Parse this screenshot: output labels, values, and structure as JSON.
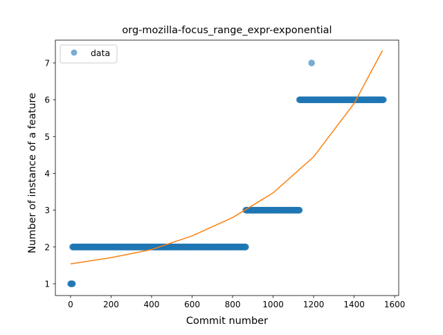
{
  "chart_data": {
    "type": "scatter",
    "title": "org-mozilla-focus_range_expr-exponential",
    "xlabel": "Commit number",
    "ylabel": "Number of instance of a feature",
    "xlim": [
      -75,
      1620
    ],
    "ylim": [
      0.68,
      7.62
    ],
    "xticks": [
      0,
      200,
      400,
      600,
      800,
      1000,
      1200,
      1400,
      1600
    ],
    "yticks": [
      1,
      2,
      3,
      4,
      5,
      6,
      7
    ],
    "legend_position": "top-left",
    "grid": false,
    "colors": {
      "data": "#1f77b4",
      "fit": "#ff7f0e"
    },
    "series": [
      {
        "name": "data",
        "kind": "scatter",
        "segments": [
          {
            "x_start": 0,
            "x_end": 10,
            "y": 1
          },
          {
            "x_start": 10,
            "x_end": 865,
            "y": 2
          },
          {
            "x_start": 865,
            "x_end": 1130,
            "y": 3
          },
          {
            "x_start": 1130,
            "x_end": 1190,
            "y": 6
          },
          {
            "x_start": 1190,
            "x_end": 1190,
            "y": 7
          },
          {
            "x_start": 1190,
            "x_end": 1545,
            "y": 6
          }
        ]
      },
      {
        "kind": "line",
        "model": "exponential",
        "x": [
          0,
          200,
          400,
          600,
          800,
          1000,
          1200,
          1400,
          1540
        ],
        "y": [
          1.54,
          1.71,
          1.93,
          2.3,
          2.8,
          3.47,
          4.45,
          5.9,
          7.34
        ]
      }
    ]
  }
}
